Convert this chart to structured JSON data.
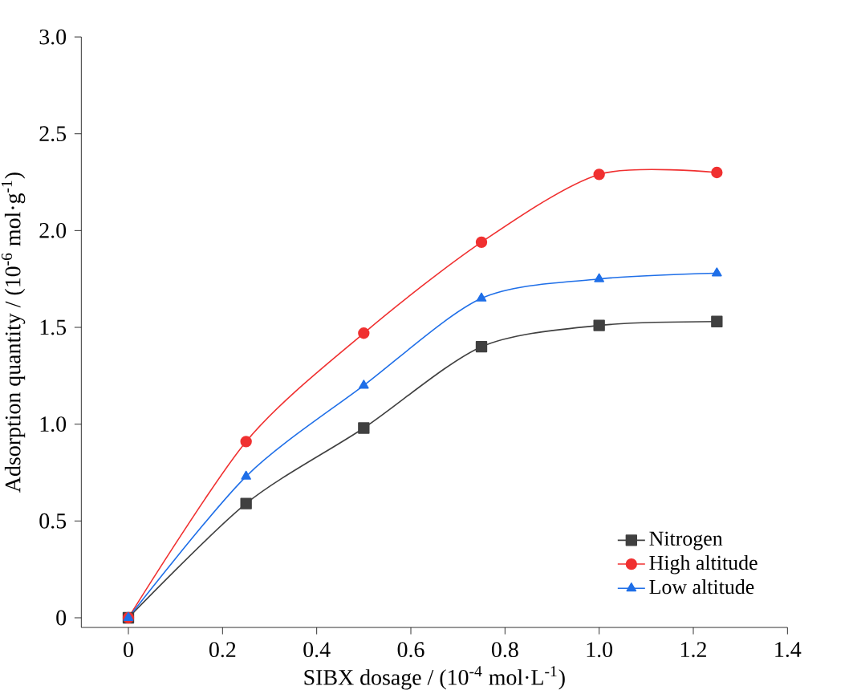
{
  "chart_data": {
    "type": "line",
    "xlabel": "SIBX dosage / (10$^{-4}$ mol·L$^{-1}$)",
    "ylabel": "Adsorption quantity / (10$^{-6}$ mol·g$^{-1}$)",
    "x": [
      0,
      0.25,
      0.5,
      0.75,
      1.0,
      1.25
    ],
    "series": [
      {
        "name": "Nitrogen",
        "color": "#404040",
        "marker": "square",
        "values": [
          0,
          0.59,
          0.98,
          1.4,
          1.51,
          1.53
        ]
      },
      {
        "name": "High altitude",
        "color": "#f03030",
        "marker": "circle",
        "values": [
          0,
          0.91,
          1.47,
          1.94,
          2.29,
          2.3
        ]
      },
      {
        "name": "Low altitude",
        "color": "#1f6fe8",
        "marker": "triangle",
        "values": [
          0,
          0.73,
          1.2,
          1.65,
          1.75,
          1.78
        ]
      }
    ],
    "xlim": [
      -0.1,
      1.4
    ],
    "xticks": [
      0,
      0.2,
      0.4,
      0.6,
      0.8,
      {
        "value": 1.0,
        "label": "1.0"
      },
      1.2,
      1.4
    ],
    "ylim": [
      -0.05,
      3.0
    ],
    "yticks": [
      0,
      {
        "value": 0.5,
        "label": "0.5"
      },
      {
        "value": 1.0,
        "label": "1.0"
      },
      {
        "value": 1.5,
        "label": "1.5"
      },
      {
        "value": 2.0,
        "label": "2.0"
      },
      {
        "value": 2.5,
        "label": "2.5"
      },
      {
        "value": 3.0,
        "label": "3.0"
      }
    ],
    "line_style": "solid",
    "legend": "bottom right",
    "grid": false
  }
}
